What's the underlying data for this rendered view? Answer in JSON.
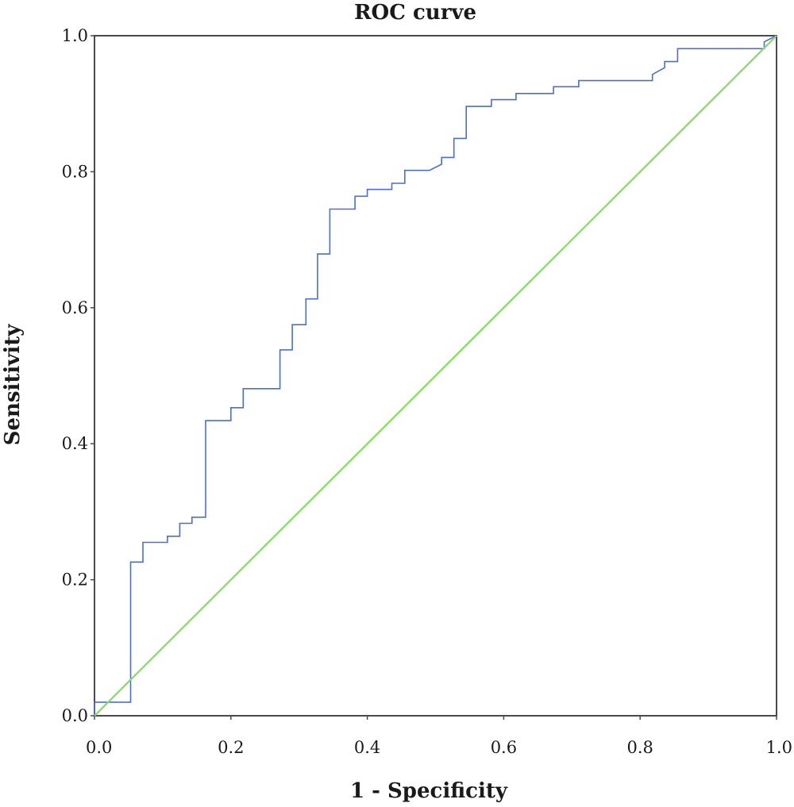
{
  "chart_data": {
    "type": "line",
    "title": "ROC curve",
    "xlabel": "1 - Specificity",
    "ylabel": "Sensitivity",
    "xlim": [
      0.0,
      1.0
    ],
    "ylim": [
      0.0,
      1.0
    ],
    "x_ticks": [
      "0.0",
      "0.2",
      "0.4",
      "0.6",
      "0.8",
      "1.0"
    ],
    "y_ticks": [
      "0.0",
      "0.2",
      "0.4",
      "0.6",
      "0.8",
      "1.0"
    ],
    "grid": false,
    "legend": "none",
    "series": [
      {
        "color": "#4a6fd1",
        "step": true,
        "x": [
          0.0,
          0.0,
          0.053,
          0.053,
          0.071,
          0.071,
          0.107,
          0.107,
          0.125,
          0.125,
          0.143,
          0.143,
          0.163,
          0.163,
          0.2,
          0.2,
          0.218,
          0.218,
          0.272,
          0.272,
          0.29,
          0.29,
          0.31,
          0.31,
          0.327,
          0.327,
          0.345,
          0.345,
          0.382,
          0.382,
          0.4,
          0.4,
          0.436,
          0.436,
          0.455,
          0.455,
          0.491,
          0.509,
          0.509,
          0.527,
          0.527,
          0.545,
          0.545,
          0.582,
          0.582,
          0.618,
          0.618,
          0.673,
          0.673,
          0.71,
          0.71,
          0.818,
          0.818,
          0.836,
          0.836,
          0.855,
          0.855,
          0.982,
          0.982,
          1.0
        ],
        "y": [
          0.0,
          0.02,
          0.02,
          0.226,
          0.226,
          0.255,
          0.255,
          0.264,
          0.264,
          0.283,
          0.283,
          0.292,
          0.292,
          0.434,
          0.434,
          0.453,
          0.453,
          0.481,
          0.481,
          0.538,
          0.538,
          0.575,
          0.575,
          0.613,
          0.613,
          0.679,
          0.679,
          0.745,
          0.745,
          0.764,
          0.764,
          0.774,
          0.774,
          0.783,
          0.783,
          0.802,
          0.802,
          0.811,
          0.821,
          0.821,
          0.849,
          0.849,
          0.896,
          0.896,
          0.906,
          0.906,
          0.915,
          0.915,
          0.925,
          0.925,
          0.934,
          0.934,
          0.943,
          0.953,
          0.962,
          0.962,
          0.981,
          0.981,
          0.991,
          1.0
        ]
      },
      {
        "color": "#7fe05a",
        "x": [
          0.0,
          1.0
        ],
        "y": [
          0.0,
          1.0
        ]
      }
    ]
  }
}
